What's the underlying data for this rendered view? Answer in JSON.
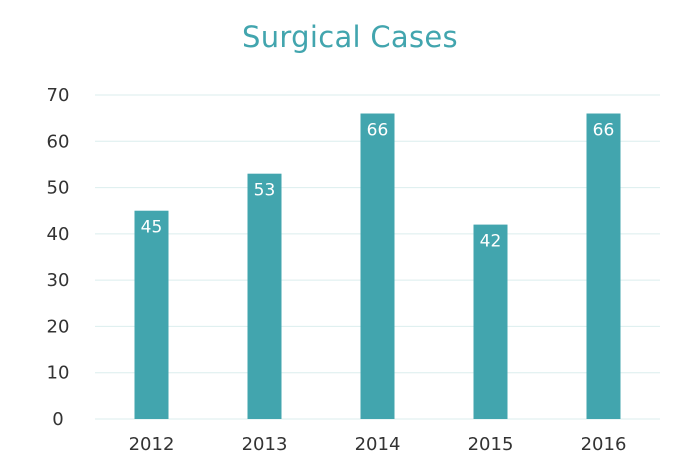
{
  "chart_data": {
    "type": "bar",
    "title": "Surgical Cases",
    "xlabel": "",
    "ylabel": "",
    "categories": [
      "2012",
      "2013",
      "2014",
      "2015",
      "2016"
    ],
    "values": [
      45,
      53,
      66,
      42,
      66
    ],
    "data_labels": [
      "45",
      "53",
      "66",
      "42",
      "66"
    ],
    "ylim": [
      0,
      70
    ],
    "y_ticks": [
      "0",
      "10",
      "20",
      "30",
      "40",
      "50",
      "60",
      "70"
    ],
    "grid": true,
    "legend": "none",
    "colors": {
      "bar": "#42a5ae",
      "title": "#42a5ae",
      "grid": "#dbeeee",
      "tick_text": "#333333",
      "data_label": "#ffffff"
    }
  }
}
